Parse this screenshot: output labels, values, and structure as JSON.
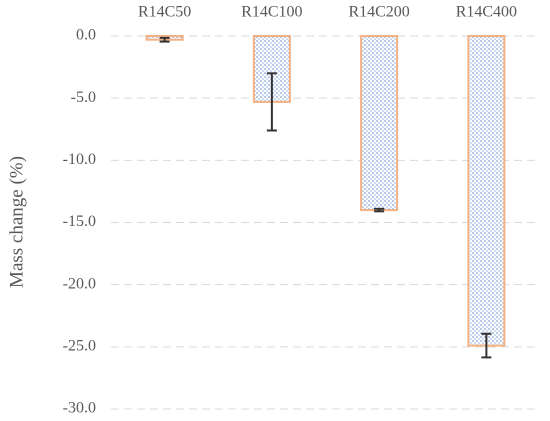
{
  "chart_data": {
    "type": "bar",
    "y_label": "Mass change (%)",
    "categories": [
      "R14C50",
      "R14C100",
      "R14C200",
      "R14C400"
    ],
    "values": [
      -0.3,
      -5.3,
      -14.0,
      -24.9
    ],
    "errors": [
      0.15,
      2.3,
      0.1,
      0.95
    ],
    "color": "#5b87d6",
    "edge_color": "#f4b183",
    "error_color": "#333333",
    "ylim": [
      -30,
      0
    ],
    "yticks": [
      {
        "value": 0,
        "label": "0.0"
      },
      {
        "value": -5,
        "label": "-5.0"
      },
      {
        "value": -10,
        "label": "-10.0"
      },
      {
        "value": -15,
        "label": "-15.0"
      },
      {
        "value": -20,
        "label": "-20.0"
      },
      {
        "value": -25,
        "label": "-25.0"
      },
      {
        "value": -30,
        "label": "-30.0"
      }
    ],
    "grid": true
  }
}
